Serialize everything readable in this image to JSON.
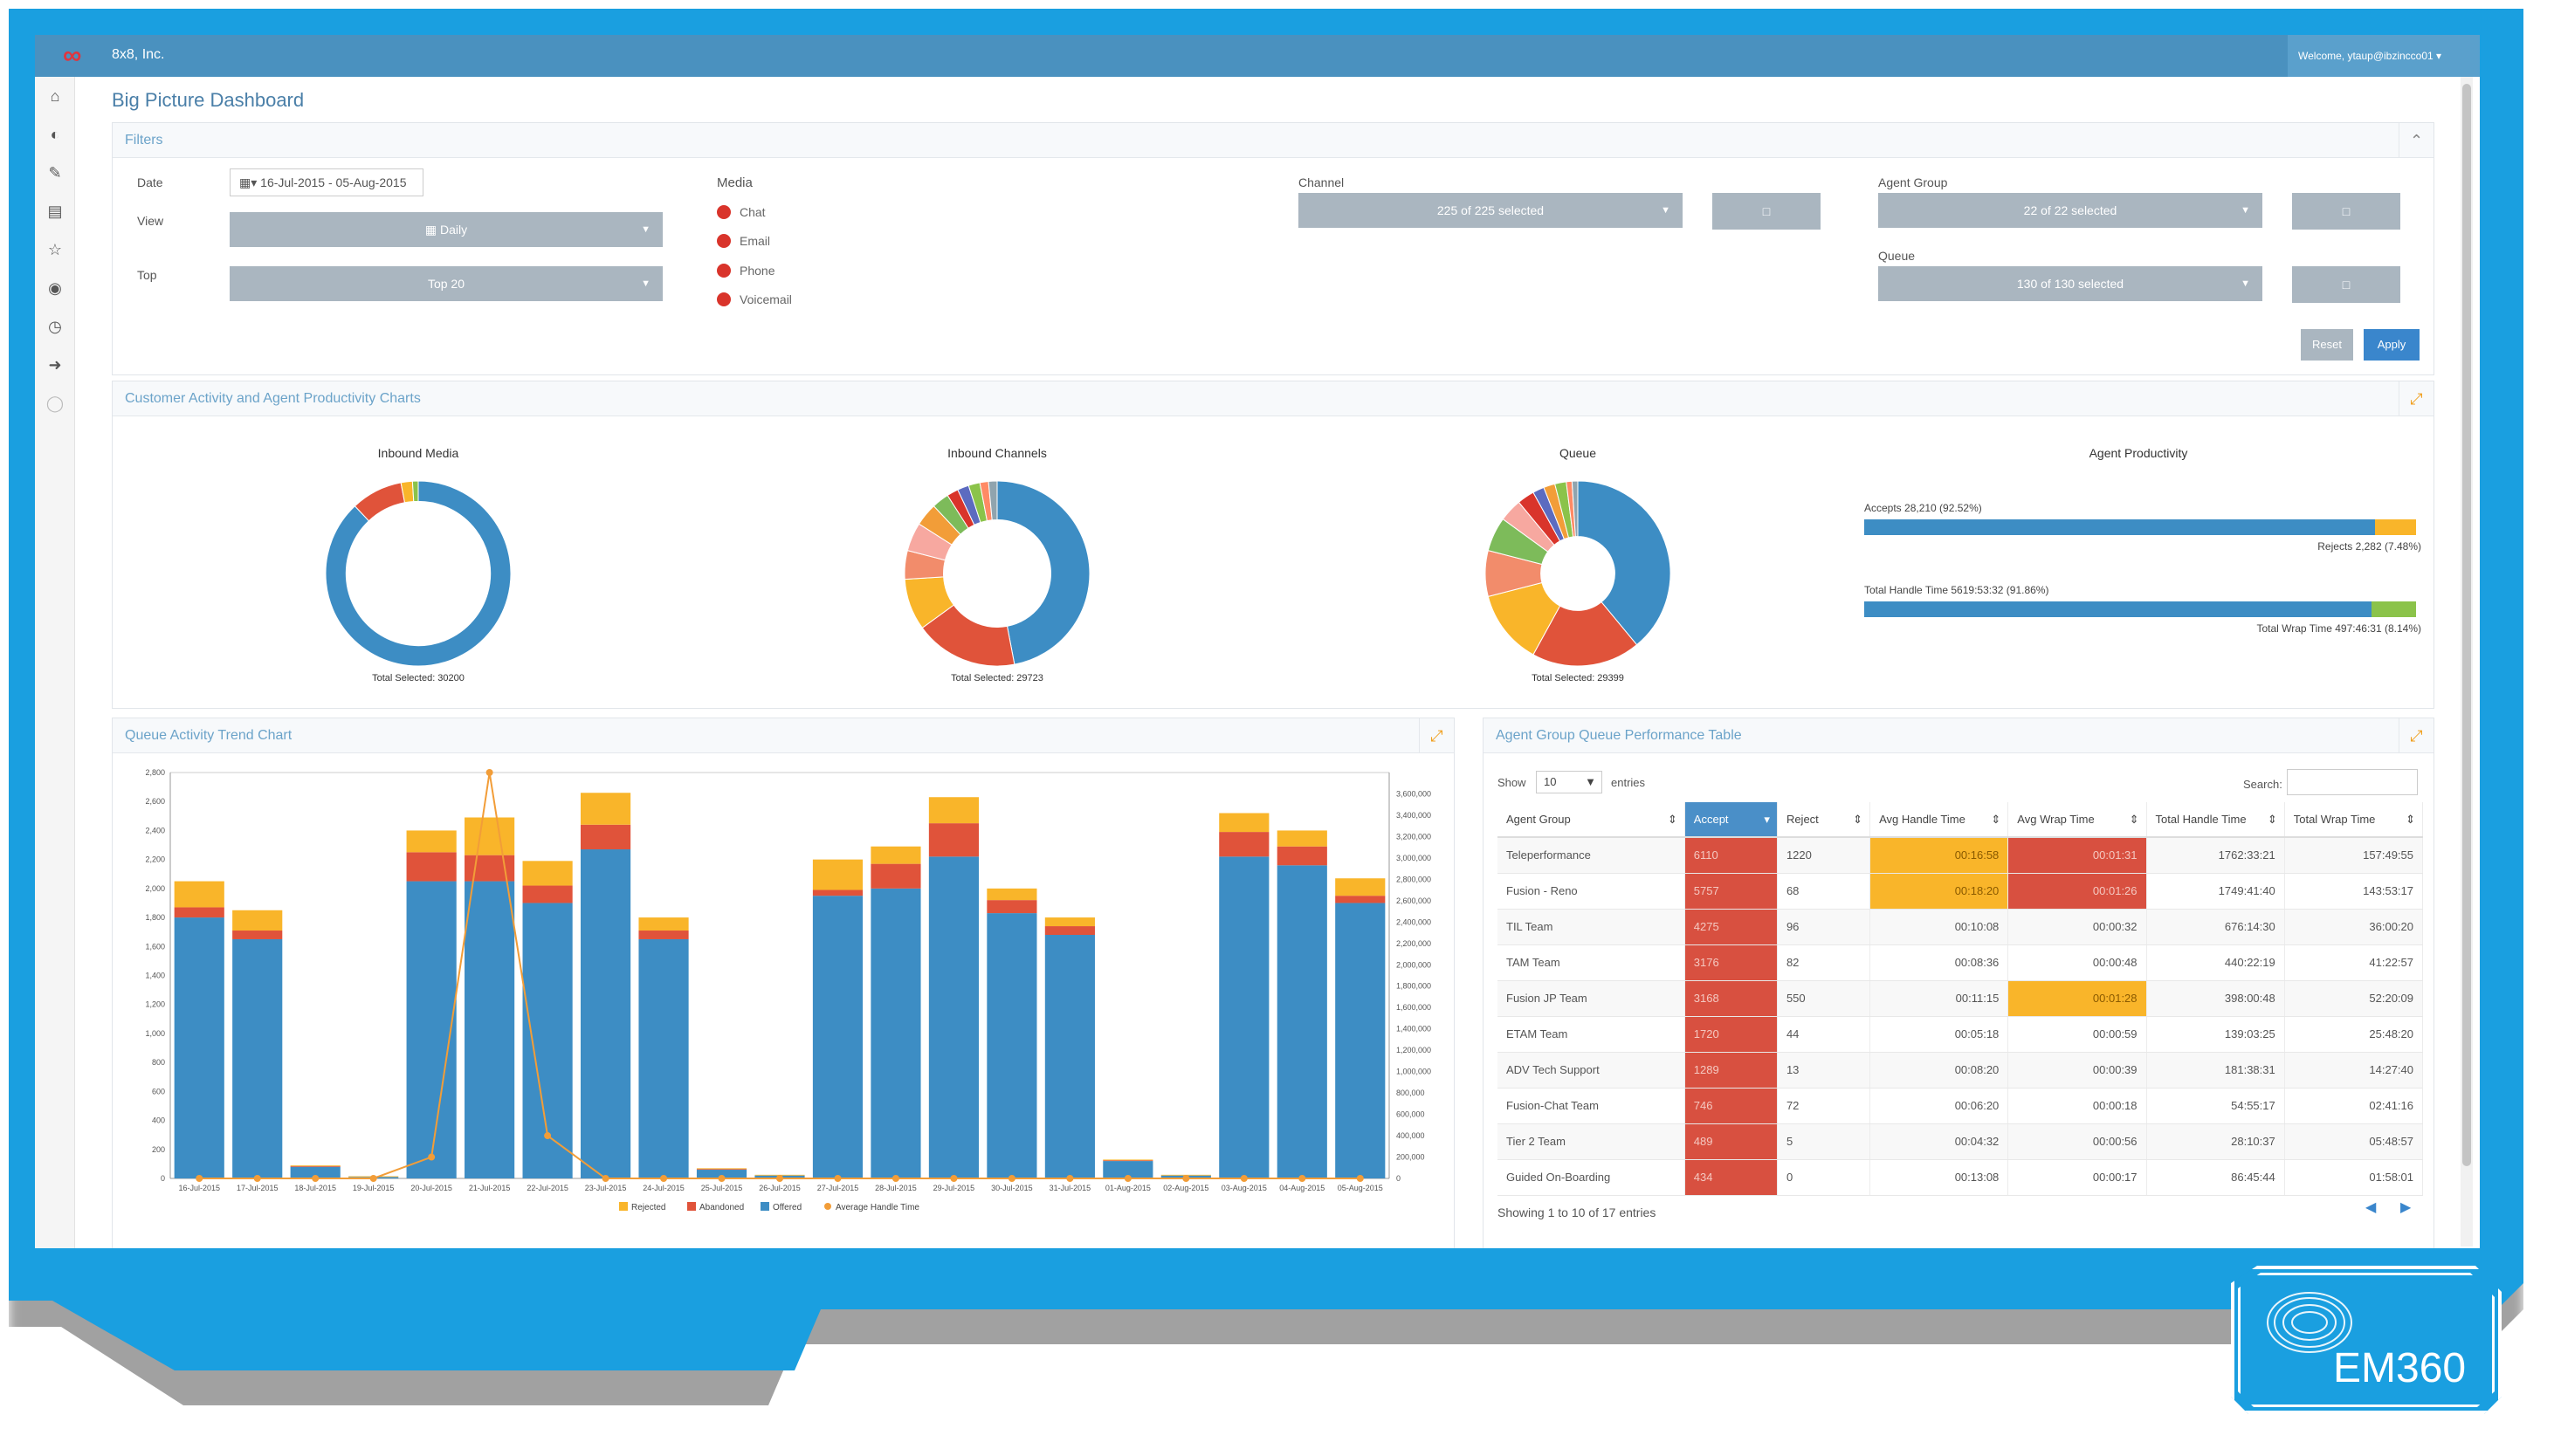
{
  "app": {
    "company": "8x8, Inc.",
    "welcome": "Welcome, ytaup@ibzincco01"
  },
  "page_title": "Big Picture Dashboard",
  "filters": {
    "title": "Filters",
    "date_label": "Date",
    "date_value": "16-Jul-2015 - 05-Aug-2015",
    "view_label": "View",
    "view_value": "Daily",
    "top_label": "Top",
    "top_value": "Top 20",
    "media_label": "Media",
    "media_items": [
      "Chat",
      "Email",
      "Phone",
      "Voicemail"
    ],
    "channel_label": "Channel",
    "channel_value": "225 of 225 selected",
    "agent_group_label": "Agent Group",
    "agent_group_value": "22 of 22 selected",
    "queue_label": "Queue",
    "queue_value": "130 of 130 selected",
    "reset_label": "Reset",
    "apply_label": "Apply"
  },
  "charts_panel": {
    "title": "Customer Activity and Agent Productivity Charts",
    "inbound_media": {
      "title": "Inbound Media",
      "total": "Total Selected: 30200"
    },
    "inbound_channels": {
      "title": "Inbound Channels",
      "total": "Total Selected: 29723"
    },
    "queue": {
      "title": "Queue",
      "total": "Total Selected: 29399"
    },
    "agent_productivity": {
      "title": "Agent Productivity",
      "accepts_label": "Accepts 28,210 (92.52%)",
      "rejects_label": "Rejects 2,282 (7.48%)",
      "accepts_fraction": 0.9252,
      "handle_label": "Total Handle Time 5619:53:32 (91.86%)",
      "wrap_label": "Total Wrap Time 497:46:31 (8.14%)",
      "handle_fraction": 0.9186
    }
  },
  "trend_panel": {
    "title": "Queue Activity Trend Chart"
  },
  "table_panel": {
    "title": "Agent Group Queue Performance Table",
    "show_label": "Show",
    "show_value": "10",
    "entries_label": "entries",
    "search_label": "Search:",
    "columns": [
      "Agent Group",
      "Accept",
      "Reject",
      "Avg Handle Time",
      "Avg Wrap Time",
      "Total Handle Time",
      "Total Wrap Time"
    ],
    "rows": [
      [
        "Teleperformance",
        "6110",
        "1220",
        "00:16:58",
        "00:01:31",
        "1762:33:21",
        "157:49:55"
      ],
      [
        "Fusion - Reno",
        "5757",
        "68",
        "00:18:20",
        "00:01:26",
        "1749:41:40",
        "143:53:17"
      ],
      [
        "TIL Team",
        "4275",
        "96",
        "00:10:08",
        "00:00:32",
        "676:14:30",
        "36:00:20"
      ],
      [
        "TAM Team",
        "3176",
        "82",
        "00:08:36",
        "00:00:48",
        "440:22:19",
        "41:22:57"
      ],
      [
        "Fusion JP Team",
        "3168",
        "550",
        "00:11:15",
        "00:01:28",
        "398:00:48",
        "52:20:09"
      ],
      [
        "ETAM Team",
        "1720",
        "44",
        "00:05:18",
        "00:00:59",
        "139:03:25",
        "25:48:20"
      ],
      [
        "ADV Tech Support",
        "1289",
        "13",
        "00:08:20",
        "00:00:39",
        "181:38:31",
        "14:27:40"
      ],
      [
        "Fusion-Chat Team",
        "746",
        "72",
        "00:06:20",
        "00:00:18",
        "54:55:17",
        "02:41:16"
      ],
      [
        "Tier 2 Team",
        "489",
        "5",
        "00:04:32",
        "00:00:56",
        "28:10:37",
        "05:48:57"
      ],
      [
        "Guided On-Boarding",
        "434",
        "0",
        "00:13:08",
        "00:00:17",
        "86:45:44",
        "01:58:01"
      ]
    ],
    "footer": "Showing 1 to 10 of 17 entries"
  },
  "chart_data": [
    {
      "type": "pie",
      "title": "Inbound Media",
      "categories": [
        "Phone",
        "Chat",
        "Email",
        "Voicemail"
      ],
      "values": [
        88,
        9,
        2,
        1
      ],
      "colors": [
        "#3d8dc4",
        "#e0533a",
        "#f9b52a",
        "#8bc34a"
      ]
    },
    {
      "type": "pie",
      "title": "Inbound Channels",
      "values": [
        47,
        18,
        9,
        5,
        5,
        4,
        3,
        2,
        2,
        2,
        1.5,
        1.5
      ],
      "colors": [
        "#3d8dc4",
        "#e0533a",
        "#f9b52a",
        "#f28c6b",
        "#f7a8a0",
        "#f29d38",
        "#7dbb5a",
        "#d9342b",
        "#5c6bc0",
        "#8bc34a",
        "#ff8a65",
        "#90a4ae"
      ]
    },
    {
      "type": "pie",
      "title": "Queue",
      "values": [
        39,
        19,
        13,
        8,
        6,
        4,
        3,
        2,
        2,
        2,
        1,
        1
      ],
      "colors": [
        "#3d8dc4",
        "#e0533a",
        "#f9b52a",
        "#f28c6b",
        "#7dbb5a",
        "#f7a8a0",
        "#d9342b",
        "#5c6bc0",
        "#f29d38",
        "#8bc34a",
        "#ff8a65",
        "#90a4ae"
      ]
    },
    {
      "type": "bar",
      "title": "Queue Activity Trend Chart",
      "categories": [
        "16-Jul-2015",
        "17-Jul-2015",
        "18-Jul-2015",
        "19-Jul-2015",
        "20-Jul-2015",
        "21-Jul-2015",
        "22-Jul-2015",
        "23-Jul-2015",
        "24-Jul-2015",
        "25-Jul-2015",
        "26-Jul-2015",
        "27-Jul-2015",
        "28-Jul-2015",
        "29-Jul-2015",
        "30-Jul-2015",
        "31-Jul-2015",
        "01-Aug-2015",
        "02-Aug-2015",
        "03-Aug-2015",
        "04-Aug-2015",
        "05-Aug-2015"
      ],
      "series": [
        {
          "name": "Offered",
          "color": "#3d8dc4",
          "values": [
            1800,
            1650,
            80,
            10,
            2050,
            2050,
            1900,
            2270,
            1650,
            60,
            20,
            1950,
            2000,
            2220,
            1830,
            1680,
            120,
            20,
            2220,
            2160,
            1900
          ]
        },
        {
          "name": "Abandoned",
          "color": "#e0533a",
          "values": [
            70,
            60,
            5,
            0,
            200,
            180,
            120,
            170,
            60,
            5,
            0,
            40,
            170,
            230,
            90,
            60,
            5,
            0,
            170,
            130,
            50
          ]
        },
        {
          "name": "Rejected",
          "color": "#f9b52a",
          "values": [
            180,
            140,
            5,
            5,
            150,
            260,
            170,
            220,
            90,
            5,
            5,
            210,
            120,
            180,
            80,
            60,
            5,
            5,
            130,
            110,
            120
          ]
        },
        {
          "name": "Average Handle Time",
          "color": "#f29d38",
          "type": "line",
          "values": [
            0,
            0,
            0,
            0,
            200000,
            3800000,
            400000,
            0,
            0,
            0,
            0,
            0,
            0,
            0,
            0,
            0,
            0,
            0,
            0,
            0,
            0
          ]
        }
      ],
      "ylim": [
        0,
        2800
      ],
      "y2lim": [
        0,
        3800000
      ],
      "yticks": [
        "0",
        "200",
        "400",
        "600",
        "800",
        "1,000",
        "1,200",
        "1,400",
        "1,600",
        "1,800",
        "2,000",
        "2,200",
        "2,400",
        "2,600",
        "2,800"
      ],
      "y2ticks": [
        "0",
        "200,000",
        "400,000",
        "600,000",
        "800,000",
        "1,000,000",
        "1,200,000",
        "1,400,000",
        "1,600,000",
        "1,800,000",
        "2,000,000",
        "2,200,000",
        "2,400,000",
        "2,600,000",
        "2,800,000",
        "3,000,000",
        "3,200,000",
        "3,400,000",
        "3,600,000"
      ],
      "legend": "bottom"
    }
  ],
  "sidebar_icons": [
    "home-icon",
    "dashboard-icon",
    "edit-icon",
    "document-icon",
    "star-icon",
    "eye-icon",
    "clock-icon",
    "logout-icon",
    "circle-icon"
  ],
  "brand": {
    "watermark": "EM360"
  }
}
